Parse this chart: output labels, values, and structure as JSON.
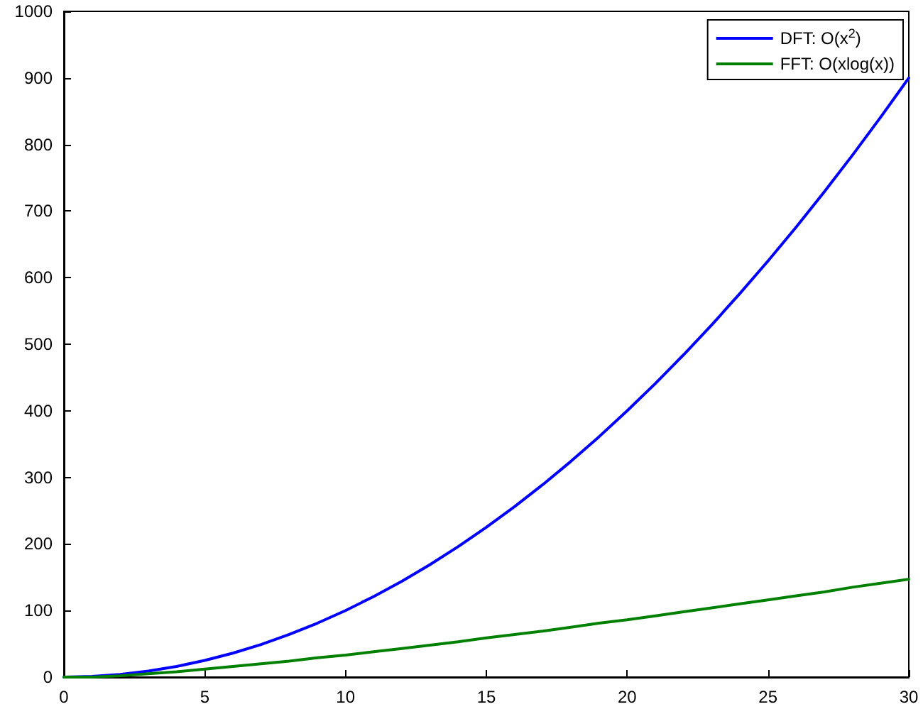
{
  "chart_data": {
    "type": "line",
    "x": [
      0,
      1,
      2,
      3,
      4,
      5,
      6,
      7,
      8,
      9,
      10,
      11,
      12,
      13,
      14,
      15,
      16,
      17,
      18,
      19,
      20,
      21,
      22,
      23,
      24,
      25,
      26,
      27,
      28,
      29,
      30
    ],
    "series": [
      {
        "name": "DFT: O(x$^{2}$)",
        "color": "#0000ff",
        "values": [
          0,
          1,
          4,
          9,
          16,
          25,
          36,
          49,
          64,
          81,
          100,
          121,
          144,
          169,
          196,
          225,
          256,
          289,
          324,
          361,
          400,
          441,
          484,
          529,
          576,
          625,
          676,
          729,
          784,
          841,
          900
        ]
      },
      {
        "name": "FFT: O(xlog(x))",
        "color": "#008000",
        "values": [
          0,
          0,
          2,
          5,
          8,
          12,
          16,
          20,
          24,
          29,
          33,
          38,
          43,
          48,
          53,
          59,
          64,
          69,
          75,
          81,
          86,
          92,
          98,
          104,
          110,
          116,
          122,
          128,
          135,
          141,
          147
        ]
      }
    ],
    "xlim": [
      0,
      30
    ],
    "xticks": [
      0,
      5,
      10,
      15,
      20,
      25,
      30
    ],
    "ylim": [
      0,
      1000
    ],
    "yticks": [
      0,
      100,
      200,
      300,
      400,
      500,
      600,
      700,
      800,
      900,
      1000
    ],
    "grid": false,
    "legend": "top right",
    "marker": "none",
    "line_style": "solid"
  }
}
